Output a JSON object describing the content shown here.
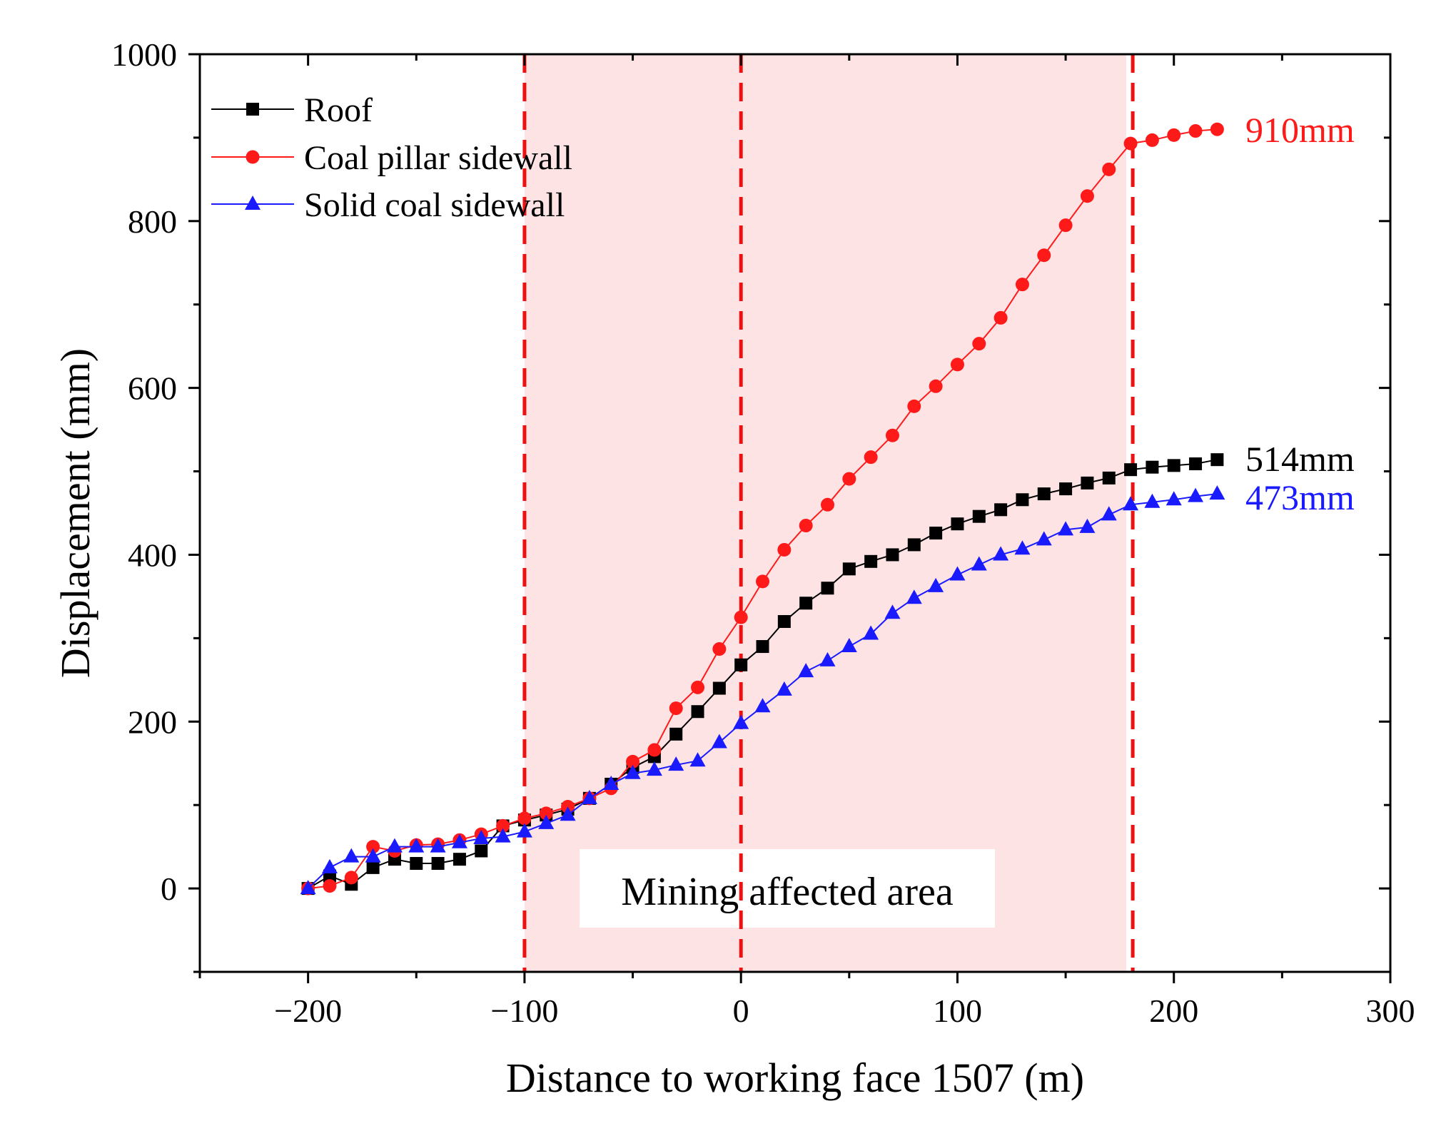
{
  "chart_data": {
    "type": "line",
    "title": "",
    "xlabel": "Distance to working face 1507 (m)",
    "ylabel": "Displacement (mm)",
    "xlim": [
      -250,
      300
    ],
    "ylim": [
      -100,
      1000
    ],
    "xticks": [
      -200,
      -100,
      0,
      100,
      200,
      300
    ],
    "yticks": [
      0,
      200,
      400,
      600,
      800,
      1000
    ],
    "x_tick_labels": [
      "−200",
      "−100",
      "0",
      "100",
      "200",
      "300"
    ],
    "y_tick_labels": [
      "0",
      "200",
      "400",
      "600",
      "800",
      "1000"
    ],
    "grid": false,
    "legend_position": "top-left",
    "shaded_region": {
      "x_range": [
        -100,
        178
      ],
      "color": "#fde3e4",
      "label": "Mining affected area"
    },
    "dashed_lines": [
      {
        "x": -100,
        "color": "#ee1111"
      },
      {
        "x": 0,
        "color": "#ee1111"
      },
      {
        "x": 181,
        "color": "#ee1111"
      }
    ],
    "x": [
      -200,
      -190,
      -180,
      -170,
      -160,
      -150,
      -140,
      -130,
      -120,
      -110,
      -100,
      -90,
      -80,
      -70,
      -60,
      -50,
      -40,
      -30,
      -20,
      -10,
      0,
      10,
      20,
      30,
      40,
      50,
      60,
      70,
      80,
      90,
      100,
      110,
      120,
      130,
      140,
      150,
      160,
      170,
      180,
      190,
      200,
      210,
      220
    ],
    "series": [
      {
        "name": "Roof",
        "color": "#000000",
        "marker": "square",
        "values": [
          0,
          15,
          5,
          25,
          35,
          30,
          30,
          35,
          45,
          75,
          82,
          88,
          95,
          108,
          125,
          145,
          158,
          185,
          212,
          240,
          268,
          290,
          320,
          342,
          360,
          383,
          392,
          400,
          412,
          426,
          437,
          446,
          454,
          466,
          473,
          479,
          486,
          492,
          502,
          505,
          507,
          509,
          514
        ],
        "end_label": "514mm"
      },
      {
        "name": "Coal pillar sidewall",
        "color": "#ff1a1a",
        "marker": "circle",
        "values": [
          0,
          3,
          13,
          50,
          45,
          52,
          53,
          58,
          65,
          75,
          84,
          90,
          98,
          108,
          120,
          152,
          166,
          216,
          241,
          287,
          325,
          368,
          406,
          435,
          460,
          491,
          517,
          543,
          578,
          602,
          628,
          653,
          684,
          724,
          759,
          795,
          830,
          862,
          893,
          897,
          903,
          908,
          910
        ],
        "end_label": "910mm"
      },
      {
        "name": "Solid coal sidewall",
        "color": "#1a1aff",
        "marker": "triangle",
        "values": [
          0,
          25,
          38,
          38,
          50,
          50,
          50,
          55,
          60,
          62,
          68,
          78,
          88,
          108,
          125,
          138,
          142,
          148,
          153,
          175,
          198,
          218,
          238,
          260,
          273,
          290,
          305,
          330,
          348,
          362,
          376,
          388,
          400,
          407,
          418,
          430,
          433,
          448,
          460,
          463,
          466,
          470,
          473
        ],
        "end_label": "473mm"
      }
    ]
  }
}
